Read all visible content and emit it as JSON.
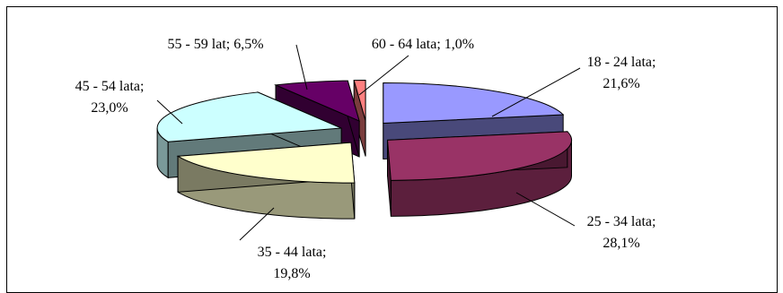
{
  "chart_data": {
    "type": "pie",
    "style": "3d-exploded",
    "title": "",
    "categories": [
      "18 - 24 lata",
      "25 - 34 lata",
      "35 - 44 lata",
      "45 - 54 lata",
      "55 - 59 lat",
      "60 - 64 lata"
    ],
    "values": [
      21.6,
      28.1,
      19.8,
      23.0,
      6.5,
      1.0
    ],
    "value_labels": [
      "21,6%",
      "28,1%",
      "19,8%",
      "23,0%",
      "6,5%",
      "1,0%"
    ],
    "colors": [
      "#9999FF",
      "#993366",
      "#FFFFCC",
      "#CCFFFF",
      "#660066",
      "#FF8080"
    ],
    "legend": "none"
  }
}
